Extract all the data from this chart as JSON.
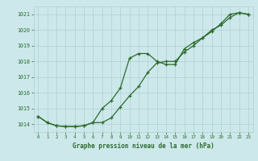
{
  "title": "Graphe pression niveau de la mer (hPa)",
  "bg_color": "#cce8ea",
  "grid_color": "#b0d0d2",
  "line_color": "#2d6a2d",
  "line1_x": [
    0,
    1,
    2,
    3,
    4,
    5,
    6,
    7,
    8,
    9,
    10,
    11,
    12,
    13,
    14,
    15,
    16,
    17,
    18,
    19,
    20,
    21,
    22,
    23
  ],
  "line1_y": [
    1014.5,
    1014.1,
    1013.9,
    1013.85,
    1013.85,
    1013.9,
    1014.1,
    1015.0,
    1015.5,
    1016.3,
    1018.2,
    1018.5,
    1018.5,
    1018.0,
    1017.8,
    1017.8,
    1018.8,
    1019.2,
    1019.5,
    1019.9,
    1020.4,
    1021.0,
    1021.1,
    1021.0
  ],
  "line2_x": [
    0,
    1,
    2,
    3,
    4,
    5,
    6,
    7,
    8,
    9,
    10,
    11,
    12,
    13,
    14,
    15,
    16,
    17,
    18,
    19,
    20,
    21,
    22,
    23
  ],
  "line2_y": [
    1014.5,
    1014.1,
    1013.9,
    1013.85,
    1013.85,
    1013.9,
    1014.1,
    1014.1,
    1014.4,
    1015.1,
    1015.8,
    1016.4,
    1017.3,
    1017.9,
    1018.0,
    1018.0,
    1018.6,
    1019.0,
    1019.5,
    1020.0,
    1020.3,
    1020.8,
    1021.1,
    1021.0
  ],
  "ylim": [
    1013.5,
    1021.5
  ],
  "yticks": [
    1014,
    1015,
    1016,
    1017,
    1018,
    1019,
    1020,
    1021
  ],
  "xlim": [
    -0.5,
    23.5
  ],
  "xticks": [
    0,
    1,
    2,
    3,
    4,
    5,
    6,
    7,
    8,
    9,
    10,
    11,
    12,
    13,
    14,
    15,
    16,
    17,
    18,
    19,
    20,
    21,
    22,
    23
  ]
}
